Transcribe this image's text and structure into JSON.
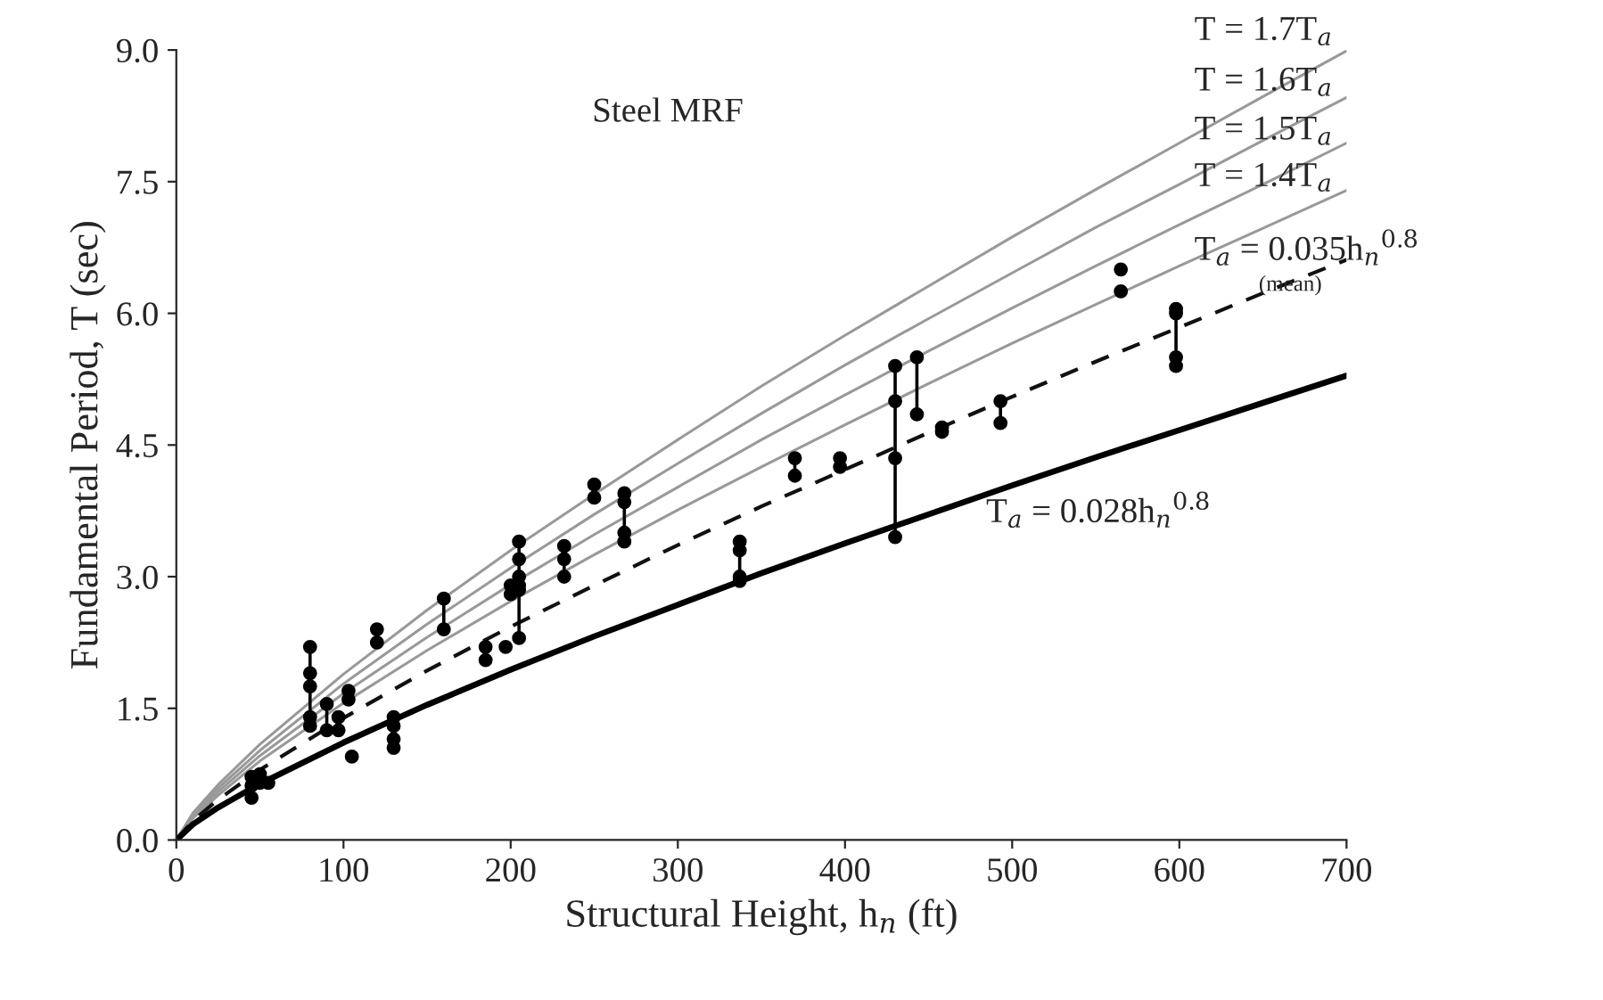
{
  "chart_data": {
    "type": "line",
    "title": "Steel MRF",
    "xlabel": "Structural Height, h$_{n}$ (ft)",
    "ylabel": "Fundamental Period, T (sec)",
    "xlim": [
      0,
      700
    ],
    "xticks": [
      0,
      100,
      200,
      300,
      400,
      500,
      600,
      700
    ],
    "ylim": [
      0,
      9
    ],
    "yticks": [
      {
        "value": 0,
        "label": "0.0"
      },
      {
        "value": 1.5,
        "label": "1.5"
      },
      {
        "value": 3,
        "label": "3.0"
      },
      {
        "value": 4.5,
        "label": "4.5"
      },
      {
        "value": 6,
        "label": "6.0"
      },
      {
        "value": 7.5,
        "label": "7.5"
      },
      {
        "value": 9,
        "label": "9.0"
      }
    ],
    "grid": false,
    "series": [
      {
        "color": "#999999",
        "line_style": "solid",
        "x": [
          0,
          10,
          25,
          50,
          100,
          150,
          200,
          250,
          300,
          350,
          400,
          450,
          500,
          550,
          600,
          650,
          700
        ],
        "values": [
          0,
          0.31,
          0.63,
          1.09,
          1.89,
          2.62,
          3.3,
          3.94,
          4.56,
          5.17,
          5.75,
          6.31,
          6.87,
          7.41,
          7.94,
          8.47,
          8.99
        ]
      },
      {
        "color": "#999999",
        "line_style": "solid",
        "x": [
          0,
          10,
          25,
          50,
          100,
          150,
          200,
          250,
          300,
          350,
          400,
          450,
          500,
          550,
          600,
          650,
          700
        ],
        "values": [
          0,
          0.29,
          0.59,
          1.02,
          1.78,
          2.46,
          3.1,
          3.71,
          4.29,
          4.86,
          5.41,
          5.94,
          6.46,
          6.98,
          7.47,
          7.97,
          8.46
        ]
      },
      {
        "color": "#999999",
        "line_style": "solid",
        "x": [
          0,
          10,
          25,
          50,
          100,
          150,
          200,
          250,
          300,
          350,
          400,
          450,
          500,
          550,
          600,
          650,
          700
        ],
        "values": [
          0,
          0.27,
          0.55,
          0.96,
          1.67,
          2.31,
          2.91,
          3.48,
          4.02,
          4.56,
          5.07,
          5.57,
          6.06,
          6.54,
          7.01,
          7.47,
          7.94
        ]
      },
      {
        "color": "#999999",
        "line_style": "solid",
        "x": [
          0,
          10,
          25,
          50,
          100,
          150,
          200,
          250,
          300,
          350,
          400,
          450,
          500,
          550,
          600,
          650,
          700
        ],
        "values": [
          0,
          0.25,
          0.51,
          0.9,
          1.56,
          2.16,
          2.72,
          3.25,
          3.76,
          4.25,
          4.73,
          5.2,
          5.66,
          6.1,
          6.54,
          6.97,
          7.4
        ]
      },
      {
        "color": "#111111",
        "line_style": "dashed",
        "x": [
          0,
          10,
          25,
          50,
          100,
          150,
          200,
          250,
          300,
          350,
          400,
          450,
          500,
          550,
          600,
          650,
          700
        ],
        "values": [
          0,
          0.22,
          0.46,
          0.8,
          1.39,
          1.93,
          2.43,
          2.9,
          3.36,
          3.8,
          4.22,
          4.64,
          5.05,
          5.45,
          5.84,
          6.23,
          6.61
        ]
      },
      {
        "color": "#000000",
        "line_style": "solid",
        "x": [
          0,
          10,
          25,
          50,
          100,
          150,
          200,
          250,
          300,
          350,
          400,
          450,
          500,
          550,
          600,
          650,
          700
        ],
        "values": [
          0,
          0.18,
          0.37,
          0.64,
          1.11,
          1.54,
          1.94,
          2.32,
          2.68,
          3.04,
          3.38,
          3.71,
          4.04,
          4.36,
          4.67,
          4.98,
          5.29
        ]
      },
      {
        "type": "scatter",
        "color": "#000000",
        "marker": "circle",
        "x": [
          45,
          45,
          45,
          50,
          50,
          55,
          80,
          80,
          80,
          80,
          80,
          90,
          90,
          97,
          97,
          103,
          103,
          105,
          120,
          120,
          130,
          130,
          130,
          130,
          160,
          160,
          185,
          185,
          197,
          200,
          200,
          205,
          205,
          205,
          205,
          205,
          205,
          232,
          232,
          232,
          250,
          250,
          268,
          268,
          268,
          268,
          337,
          337,
          337,
          337,
          370,
          370,
          397,
          397,
          430,
          430,
          430,
          430,
          443,
          443,
          458,
          458,
          493,
          493,
          565,
          565,
          598,
          598,
          598,
          598
        ],
        "values": [
          0.72,
          0.62,
          0.48,
          0.75,
          0.65,
          0.65,
          2.2,
          1.9,
          1.75,
          1.4,
          1.3,
          1.55,
          1.25,
          1.4,
          1.25,
          1.7,
          1.6,
          0.95,
          2.4,
          2.25,
          1.4,
          1.3,
          1.15,
          1.05,
          2.75,
          2.4,
          2.2,
          2.05,
          2.2,
          2.9,
          2.8,
          3.4,
          3.2,
          3.0,
          2.9,
          2.85,
          2.3,
          3.35,
          3.2,
          3.0,
          4.05,
          3.9,
          3.95,
          3.85,
          3.5,
          3.4,
          3.4,
          3.3,
          3.0,
          2.95,
          4.35,
          4.15,
          4.35,
          4.25,
          5.4,
          5.0,
          4.35,
          3.45,
          5.5,
          4.85,
          4.7,
          4.65,
          5.0,
          4.75,
          6.5,
          6.25,
          6.05,
          6.0,
          5.5,
          5.4
        ],
        "errors": [
          [
            0.48,
            0.72
          ],
          null,
          null,
          null,
          null,
          null,
          [
            1.3,
            2.2
          ],
          null,
          null,
          null,
          null,
          [
            1.25,
            1.55
          ],
          null,
          [
            1.25,
            1.4
          ],
          null,
          [
            1.6,
            1.7
          ],
          null,
          null,
          [
            2.25,
            2.4
          ],
          null,
          [
            1.05,
            1.4
          ],
          null,
          null,
          null,
          [
            2.4,
            2.75
          ],
          null,
          [
            2.05,
            2.2
          ],
          null,
          null,
          null,
          null,
          [
            2.3,
            3.4
          ],
          null,
          null,
          null,
          null,
          null,
          [
            3.0,
            3.35
          ],
          null,
          null,
          [
            3.9,
            4.05
          ],
          null,
          [
            3.4,
            3.95
          ],
          null,
          null,
          null,
          [
            2.95,
            3.4
          ],
          null,
          null,
          null,
          [
            4.15,
            4.35
          ],
          null,
          [
            4.25,
            4.35
          ],
          null,
          [
            3.45,
            5.4
          ],
          null,
          null,
          null,
          [
            4.85,
            5.5
          ],
          null,
          null,
          null,
          [
            4.75,
            5.0
          ],
          null,
          null,
          null,
          [
            5.4,
            6.05
          ],
          null,
          null,
          null
        ]
      }
    ],
    "annotations": [
      "T = 1.7T$_{a}$",
      "T = 1.6T$_{a}$",
      "T = 1.5T$_{a}$",
      "T = 1.4T$_{a}$",
      "T$_{a}$ = 0.035h$_{n}$$^{0.8}$",
      "(mean)",
      "T$_{a}$ = 0.028h$_{n}$$^{0.8}$"
    ]
  }
}
